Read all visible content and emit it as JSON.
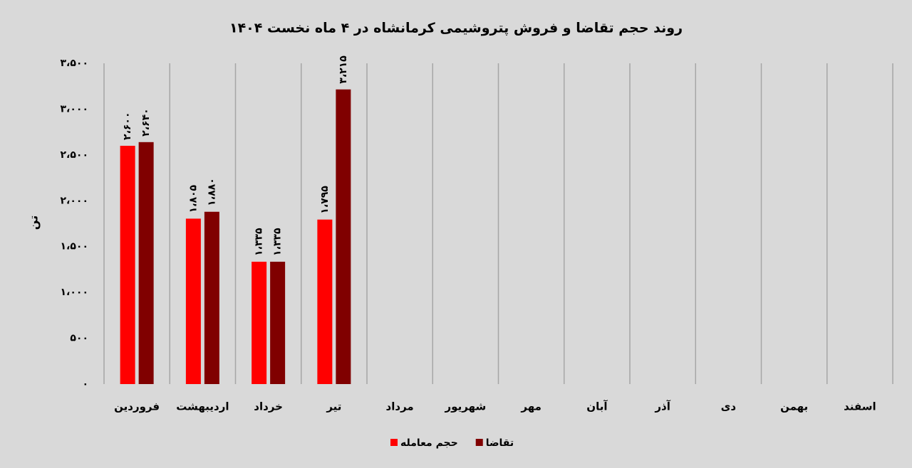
{
  "chart_data": {
    "type": "bar",
    "title": "روند حجم تقاضا و فروش  پتروشیمی کرمانشاه در ۴ ماه نخست ۱۴۰۴",
    "y_label": "تن",
    "categories": [
      "فروردین",
      "اردیبهشت",
      "خرداد",
      "تیر",
      "مرداد",
      "شهریور",
      "مهر",
      "آبان",
      "آذر",
      "دی",
      "بهمن",
      "اسفند"
    ],
    "series": [
      {
        "name": "حجم معامله",
        "color": "#ff0000",
        "values": [
          2600,
          1805,
          1335,
          1795,
          null,
          null,
          null,
          null,
          null,
          null,
          null,
          null
        ],
        "value_labels": [
          "۲،۶۰۰",
          "۱،۸۰۵",
          "۱،۳۳۵",
          "۱،۷۹۵",
          null,
          null,
          null,
          null,
          null,
          null,
          null,
          null
        ]
      },
      {
        "name": "تقاضا",
        "color": "#800000",
        "values": [
          2640,
          1880,
          1335,
          3215,
          null,
          null,
          null,
          null,
          null,
          null,
          null,
          null
        ],
        "value_labels": [
          "۲،۶۴۰",
          "۱،۸۸۰",
          "۱،۳۳۵",
          "۳،۲۱۵",
          null,
          null,
          null,
          null,
          null,
          null,
          null,
          null
        ]
      }
    ],
    "ylim": [
      0,
      3500
    ],
    "yticks": [
      {
        "value": 0,
        "label": "۰"
      },
      {
        "value": 500,
        "label": "۵۰۰"
      },
      {
        "value": 1000,
        "label": "۱،۰۰۰"
      },
      {
        "value": 1500,
        "label": "۱،۵۰۰"
      },
      {
        "value": 2000,
        "label": "۲،۰۰۰"
      },
      {
        "value": 2500,
        "label": "۲،۵۰۰"
      },
      {
        "value": 3000,
        "label": "۳،۰۰۰"
      },
      {
        "value": 3500,
        "label": "۳،۵۰۰"
      }
    ],
    "grid": false,
    "legend": "bottom"
  }
}
